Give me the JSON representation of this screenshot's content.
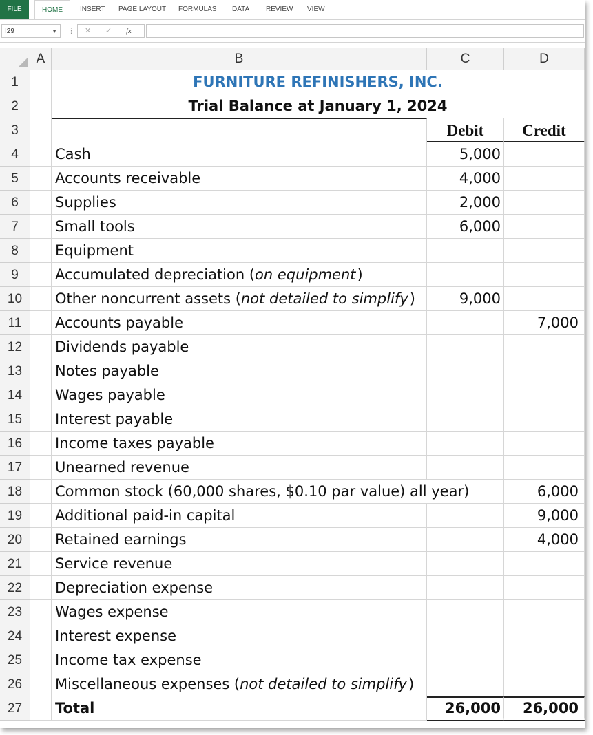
{
  "ribbon": {
    "tabs": [
      "FILE",
      "HOME",
      "INSERT",
      "PAGE LAYOUT",
      "FORMULAS",
      "DATA",
      "REVIEW",
      "VIEW"
    ]
  },
  "formula_bar": {
    "name_box": "I29",
    "fx_label": "fx",
    "cancel_icon": "close-icon",
    "enter_icon": "check-icon",
    "value": ""
  },
  "columns": [
    "A",
    "B",
    "C",
    "D"
  ],
  "sheet": {
    "title": "FURNITURE REFINISHERS, INC.",
    "subtitle": "Trial Balance at January 1, 2024",
    "debit_header": "Debit",
    "credit_header": "Credit",
    "title_color": "#2e75b6",
    "accounts": [
      {
        "row": "4",
        "name": "Cash",
        "note": "",
        "debit": "5,000",
        "credit": ""
      },
      {
        "row": "5",
        "name": "Accounts receivable",
        "note": "",
        "debit": "4,000",
        "credit": ""
      },
      {
        "row": "6",
        "name": "Supplies",
        "note": "",
        "debit": "2,000",
        "credit": ""
      },
      {
        "row": "7",
        "name": "Small tools",
        "note": "",
        "debit": "6,000",
        "credit": ""
      },
      {
        "row": "8",
        "name": "Equipment",
        "note": "",
        "debit": "",
        "credit": ""
      },
      {
        "row": "9",
        "name": "Accumulated depreciation (",
        "note": "on equipment",
        "debit": "",
        "credit": ""
      },
      {
        "row": "10",
        "name": "Other noncurrent assets (",
        "note": "not detailed to simplify",
        "debit": "9,000",
        "credit": ""
      },
      {
        "row": "11",
        "name": "Accounts payable",
        "note": "",
        "debit": "",
        "credit": "7,000"
      },
      {
        "row": "12",
        "name": "Dividends payable",
        "note": "",
        "debit": "",
        "credit": ""
      },
      {
        "row": "13",
        "name": "Notes payable",
        "note": "",
        "debit": "",
        "credit": ""
      },
      {
        "row": "14",
        "name": "Wages payable",
        "note": "",
        "debit": "",
        "credit": ""
      },
      {
        "row": "15",
        "name": "Interest payable",
        "note": "",
        "debit": "",
        "credit": ""
      },
      {
        "row": "16",
        "name": "Income taxes payable",
        "note": "",
        "debit": "",
        "credit": ""
      },
      {
        "row": "17",
        "name": "Unearned revenue",
        "note": "",
        "debit": "",
        "credit": ""
      },
      {
        "row": "18",
        "name": "Common stock (60,000 shares, $0.10 par value) all year)",
        "note": "",
        "debit": "",
        "credit": "6,000"
      },
      {
        "row": "19",
        "name": "Additional paid-in capital",
        "note": "",
        "debit": "",
        "credit": "9,000"
      },
      {
        "row": "20",
        "name": "Retained earnings",
        "note": "",
        "debit": "",
        "credit": "4,000"
      },
      {
        "row": "21",
        "name": "Service revenue",
        "note": "",
        "debit": "",
        "credit": ""
      },
      {
        "row": "22",
        "name": "Depreciation expense",
        "note": "",
        "debit": "",
        "credit": ""
      },
      {
        "row": "23",
        "name": "Wages expense",
        "note": "",
        "debit": "",
        "credit": ""
      },
      {
        "row": "24",
        "name": "Interest expense",
        "note": "",
        "debit": "",
        "credit": ""
      },
      {
        "row": "25",
        "name": "Income tax expense",
        "note": "",
        "debit": "",
        "credit": ""
      },
      {
        "row": "26",
        "name": "Miscellaneous expenses (",
        "note": "not detailed to simplify",
        "debit": "",
        "credit": ""
      }
    ],
    "total": {
      "row": "27",
      "label": "Total",
      "debit": "26,000",
      "credit": "26,000"
    }
  }
}
